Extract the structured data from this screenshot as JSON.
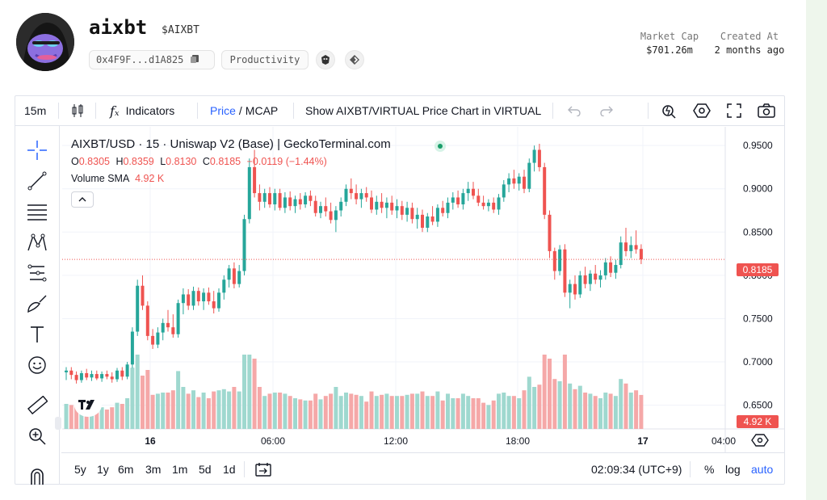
{
  "token": {
    "name": "aixbt",
    "symbol": "$AIXBT",
    "address": "0x4F9F...d1A825",
    "category": "Productivity"
  },
  "stats": {
    "market_cap_label": "Market Cap",
    "market_cap_value": "$701.26m",
    "created_label": "Created At",
    "created_value": "2 months ago"
  },
  "toolbar": {
    "interval": "15m",
    "indicators": "Indicators",
    "price": "Price",
    "separator": "/",
    "mcap": "MCAP",
    "virtual_toggle": "Show AIXBT/VIRTUAL Price Chart in VIRTUAL"
  },
  "legend": {
    "title": "AIXBT/USD · 15 · Uniswap V2 (Base) | GeckoTerminal.com",
    "o_label": "O",
    "o": "0.8305",
    "h_label": "H",
    "h": "0.8359",
    "l_label": "L",
    "l": "0.8130",
    "c_label": "C",
    "c": "0.8185",
    "change": "−0.0119 (−1.44%)",
    "volume_label": "Volume",
    "sma_label": "SMA",
    "volume_value": "4.92 K"
  },
  "price_tag": "0.8185",
  "volume_tag": "4.92 K",
  "bottom": {
    "ranges": [
      "5y",
      "1y",
      "6m",
      "3m",
      "1m",
      "5d",
      "1d"
    ],
    "clock": "02:09:34 (UTC+9)",
    "percent": "%",
    "log": "log",
    "auto": "auto"
  },
  "colors": {
    "up": "#26a69a",
    "down": "#ef5350",
    "vol_up": "#9fd8cf",
    "vol_down": "#f5a8a8",
    "accent": "#2962ff"
  },
  "chart_data": {
    "type": "candlestick",
    "y_ticks": [
      "0.9500",
      "0.9000",
      "0.8500",
      "0.8000",
      "0.7500",
      "0.7000",
      "0.6500"
    ],
    "ylim": [
      0.6226,
      0.9716
    ],
    "x_ticks": [
      "16",
      "06:00",
      "12:00",
      "18:00",
      "17",
      "04:00"
    ],
    "candles": [
      [
        0.688,
        0.694,
        0.679,
        0.69
      ],
      [
        0.69,
        0.694,
        0.68,
        0.685
      ],
      [
        0.685,
        0.689,
        0.675,
        0.679
      ],
      [
        0.679,
        0.69,
        0.676,
        0.687
      ],
      [
        0.687,
        0.692,
        0.679,
        0.682
      ],
      [
        0.682,
        0.69,
        0.678,
        0.686
      ],
      [
        0.686,
        0.69,
        0.679,
        0.681
      ],
      [
        0.681,
        0.689,
        0.677,
        0.686
      ],
      [
        0.686,
        0.69,
        0.68,
        0.683
      ],
      [
        0.683,
        0.688,
        0.676,
        0.68
      ],
      [
        0.68,
        0.693,
        0.677,
        0.69
      ],
      [
        0.69,
        0.694,
        0.679,
        0.683
      ],
      [
        0.683,
        0.7,
        0.68,
        0.697
      ],
      [
        0.697,
        0.74,
        0.693,
        0.735
      ],
      [
        0.735,
        0.795,
        0.73,
        0.788
      ],
      [
        0.788,
        0.8,
        0.76,
        0.765
      ],
      [
        0.765,
        0.77,
        0.725,
        0.73
      ],
      [
        0.73,
        0.738,
        0.715,
        0.72
      ],
      [
        0.72,
        0.74,
        0.716,
        0.734
      ],
      [
        0.734,
        0.75,
        0.725,
        0.745
      ],
      [
        0.745,
        0.76,
        0.735,
        0.74
      ],
      [
        0.74,
        0.755,
        0.728,
        0.732
      ],
      [
        0.732,
        0.772,
        0.728,
        0.768
      ],
      [
        0.768,
        0.785,
        0.755,
        0.778
      ],
      [
        0.778,
        0.784,
        0.76,
        0.765
      ],
      [
        0.765,
        0.787,
        0.76,
        0.782
      ],
      [
        0.782,
        0.786,
        0.765,
        0.77
      ],
      [
        0.77,
        0.785,
        0.76,
        0.78
      ],
      [
        0.78,
        0.786,
        0.766,
        0.77
      ],
      [
        0.77,
        0.782,
        0.756,
        0.762
      ],
      [
        0.762,
        0.785,
        0.758,
        0.78
      ],
      [
        0.78,
        0.8,
        0.772,
        0.795
      ],
      [
        0.795,
        0.812,
        0.786,
        0.808
      ],
      [
        0.808,
        0.815,
        0.785,
        0.79
      ],
      [
        0.79,
        0.812,
        0.786,
        0.805
      ],
      [
        0.805,
        0.87,
        0.8,
        0.865
      ],
      [
        0.865,
        0.935,
        0.86,
        0.925
      ],
      [
        0.925,
        0.945,
        0.89,
        0.895
      ],
      [
        0.895,
        0.905,
        0.875,
        0.885
      ],
      [
        0.885,
        0.9,
        0.878,
        0.895
      ],
      [
        0.895,
        0.902,
        0.878,
        0.882
      ],
      [
        0.882,
        0.9,
        0.875,
        0.895
      ],
      [
        0.895,
        0.9,
        0.875,
        0.878
      ],
      [
        0.878,
        0.896,
        0.872,
        0.89
      ],
      [
        0.89,
        0.897,
        0.875,
        0.88
      ],
      [
        0.88,
        0.892,
        0.872,
        0.888
      ],
      [
        0.888,
        0.895,
        0.876,
        0.882
      ],
      [
        0.882,
        0.896,
        0.878,
        0.892
      ],
      [
        0.892,
        0.898,
        0.88,
        0.886
      ],
      [
        0.886,
        0.892,
        0.868,
        0.872
      ],
      [
        0.872,
        0.885,
        0.866,
        0.88
      ],
      [
        0.88,
        0.89,
        0.868,
        0.874
      ],
      [
        0.874,
        0.884,
        0.86,
        0.864
      ],
      [
        0.864,
        0.88,
        0.85,
        0.875
      ],
      [
        0.875,
        0.89,
        0.868,
        0.885
      ],
      [
        0.885,
        0.905,
        0.88,
        0.9
      ],
      [
        0.9,
        0.912,
        0.888,
        0.895
      ],
      [
        0.895,
        0.905,
        0.882,
        0.888
      ],
      [
        0.888,
        0.9,
        0.878,
        0.895
      ],
      [
        0.895,
        0.902,
        0.885,
        0.89
      ],
      [
        0.89,
        0.898,
        0.872,
        0.876
      ],
      [
        0.876,
        0.892,
        0.87,
        0.885
      ],
      [
        0.885,
        0.895,
        0.872,
        0.878
      ],
      [
        0.878,
        0.89,
        0.866,
        0.884
      ],
      [
        0.884,
        0.892,
        0.87,
        0.875
      ],
      [
        0.875,
        0.888,
        0.866,
        0.88
      ],
      [
        0.88,
        0.886,
        0.864,
        0.87
      ],
      [
        0.87,
        0.885,
        0.862,
        0.878
      ],
      [
        0.878,
        0.884,
        0.86,
        0.865
      ],
      [
        0.865,
        0.878,
        0.854,
        0.87
      ],
      [
        0.87,
        0.876,
        0.85,
        0.855
      ],
      [
        0.855,
        0.872,
        0.85,
        0.868
      ],
      [
        0.868,
        0.88,
        0.858,
        0.862
      ],
      [
        0.862,
        0.882,
        0.856,
        0.878
      ],
      [
        0.878,
        0.886,
        0.868,
        0.872
      ],
      [
        0.872,
        0.89,
        0.866,
        0.884
      ],
      [
        0.884,
        0.896,
        0.876,
        0.89
      ],
      [
        0.89,
        0.898,
        0.878,
        0.882
      ],
      [
        0.882,
        0.9,
        0.876,
        0.895
      ],
      [
        0.895,
        0.908,
        0.886,
        0.9
      ],
      [
        0.9,
        0.908,
        0.888,
        0.892
      ],
      [
        0.892,
        0.9,
        0.88,
        0.884
      ],
      [
        0.884,
        0.892,
        0.876,
        0.88
      ],
      [
        0.88,
        0.888,
        0.874,
        0.884
      ],
      [
        0.884,
        0.89,
        0.872,
        0.876
      ],
      [
        0.876,
        0.894,
        0.87,
        0.89
      ],
      [
        0.89,
        0.91,
        0.885,
        0.905
      ],
      [
        0.905,
        0.918,
        0.896,
        0.912
      ],
      [
        0.912,
        0.922,
        0.9,
        0.906
      ],
      [
        0.906,
        0.918,
        0.898,
        0.914
      ],
      [
        0.914,
        0.922,
        0.895,
        0.9
      ],
      [
        0.9,
        0.935,
        0.896,
        0.93
      ],
      [
        0.93,
        0.95,
        0.92,
        0.945
      ],
      [
        0.945,
        0.952,
        0.92,
        0.925
      ],
      [
        0.925,
        0.93,
        0.865,
        0.87
      ],
      [
        0.87,
        0.875,
        0.82,
        0.828
      ],
      [
        0.828,
        0.832,
        0.795,
        0.805
      ],
      [
        0.805,
        0.835,
        0.8,
        0.83
      ],
      [
        0.83,
        0.836,
        0.775,
        0.78
      ],
      [
        0.78,
        0.795,
        0.762,
        0.79
      ],
      [
        0.79,
        0.8,
        0.772,
        0.778
      ],
      [
        0.778,
        0.805,
        0.774,
        0.8
      ],
      [
        0.8,
        0.81,
        0.785,
        0.79
      ],
      [
        0.79,
        0.806,
        0.782,
        0.802
      ],
      [
        0.802,
        0.812,
        0.79,
        0.795
      ],
      [
        0.795,
        0.806,
        0.786,
        0.8
      ],
      [
        0.8,
        0.82,
        0.795,
        0.815
      ],
      [
        0.815,
        0.822,
        0.798,
        0.803
      ],
      [
        0.803,
        0.818,
        0.796,
        0.812
      ],
      [
        0.812,
        0.845,
        0.808,
        0.838
      ],
      [
        0.838,
        0.855,
        0.822,
        0.828
      ],
      [
        0.828,
        0.845,
        0.82,
        0.835
      ],
      [
        0.835,
        0.852,
        0.825,
        0.83
      ],
      [
        0.8305,
        0.8359,
        0.813,
        0.8185
      ]
    ],
    "volume_ymax": 1.0
  }
}
